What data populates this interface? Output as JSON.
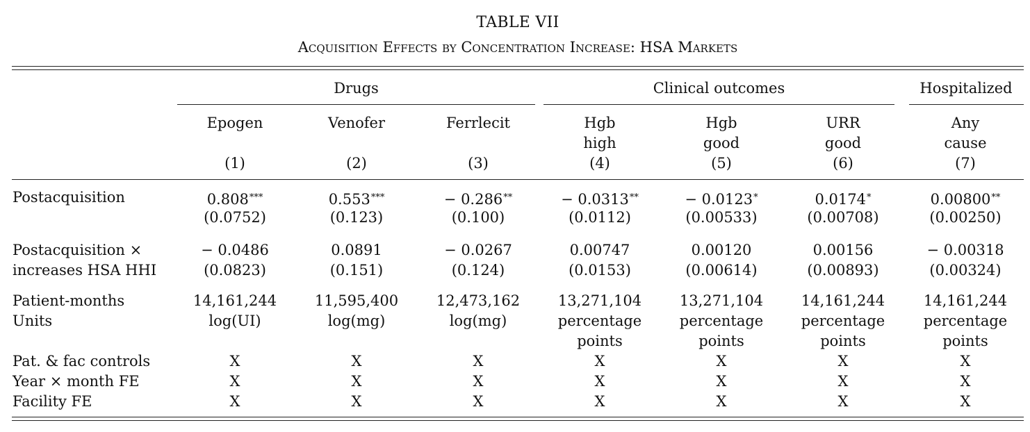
{
  "table": {
    "title": "TABLE VII",
    "subtitle": "Acquisition Effects by Concentration Increase: HSA Markets",
    "groups": [
      "Drugs",
      "Clinical outcomes",
      "Hospitalized"
    ],
    "columns": [
      {
        "name": [
          "Epogen"
        ],
        "num": "(1)"
      },
      {
        "name": [
          "Venofer"
        ],
        "num": "(2)"
      },
      {
        "name": [
          "Ferrlecit"
        ],
        "num": "(3)"
      },
      {
        "name": [
          "Hgb",
          "high"
        ],
        "num": "(4)"
      },
      {
        "name": [
          "Hgb",
          "good"
        ],
        "num": "(5)"
      },
      {
        "name": [
          "URR",
          "good"
        ],
        "num": "(6)"
      },
      {
        "name": [
          "Any",
          "cause"
        ],
        "num": "(7)"
      }
    ],
    "rows": {
      "postacq": {
        "label": "Postacquisition",
        "coef": [
          "0.808",
          "0.553",
          "− 0.286",
          "− 0.0313",
          "− 0.0123",
          "0.0174",
          "0.00800"
        ],
        "stars": [
          "***",
          "***",
          "**",
          "**",
          "*",
          "*",
          "**"
        ],
        "se": [
          "(0.0752)",
          "(0.123)",
          "(0.100)",
          "(0.0112)",
          "(0.00533)",
          "(0.00708)",
          "(0.00250)"
        ]
      },
      "interact": {
        "label1": "Postacquisition ×",
        "label2": "increases HSA HHI",
        "coef": [
          "− 0.0486",
          "0.0891",
          "− 0.0267",
          "0.00747",
          "0.00120",
          "0.00156",
          "− 0.00318"
        ],
        "se": [
          "(0.0823)",
          "(0.151)",
          "(0.124)",
          "(0.0153)",
          "(0.00614)",
          "(0.00893)",
          "(0.00324)"
        ]
      },
      "patient_months": {
        "label": "Patient-months",
        "values": [
          "14,161,244",
          "11,595,400",
          "12,473,162",
          "13,271,104",
          "13,271,104",
          "14,161,244",
          "14,161,244"
        ]
      },
      "units": {
        "label": "Units",
        "values": [
          [
            "log(UI)"
          ],
          [
            "log(mg)"
          ],
          [
            "log(mg)"
          ],
          [
            "percentage",
            "points"
          ],
          [
            "percentage",
            "points"
          ],
          [
            "percentage",
            "points"
          ],
          [
            "percentage",
            "points"
          ]
        ]
      },
      "controls": [
        {
          "label": "Pat. & fac controls",
          "marks": [
            "X",
            "X",
            "X",
            "X",
            "X",
            "X",
            "X"
          ]
        },
        {
          "label": "Year × month FE",
          "marks": [
            "X",
            "X",
            "X",
            "X",
            "X",
            "X",
            "X"
          ]
        },
        {
          "label": "Facility FE",
          "marks": [
            "X",
            "X",
            "X",
            "X",
            "X",
            "X",
            "X"
          ]
        }
      ]
    }
  }
}
